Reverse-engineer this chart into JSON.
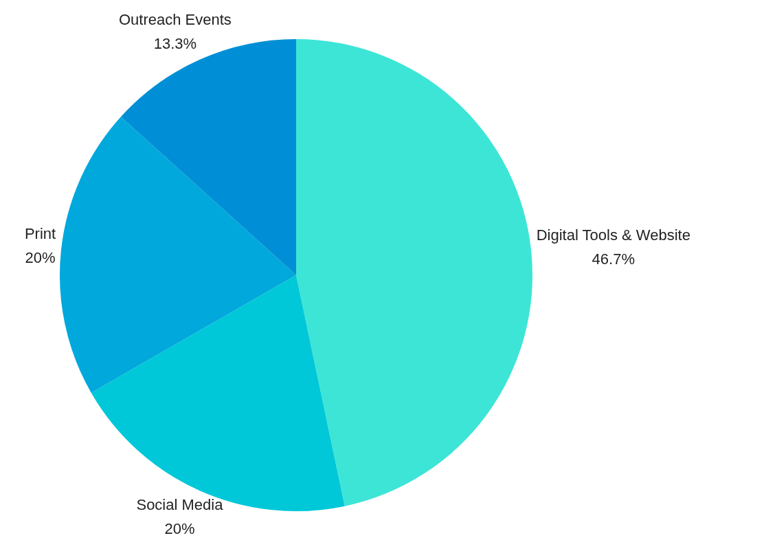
{
  "chart_data": {
    "type": "pie",
    "categories": [
      "Digital Tools & Website",
      "Social Media",
      "Print",
      "Outreach Events"
    ],
    "values": [
      46.7,
      20,
      20,
      13.3
    ],
    "value_labels": [
      "46.7%",
      "20%",
      "20%",
      "13.3%"
    ],
    "colors": [
      "#3de5d6",
      "#00c8d8",
      "#00a8dc",
      "#008fd6"
    ],
    "legend": false
  }
}
